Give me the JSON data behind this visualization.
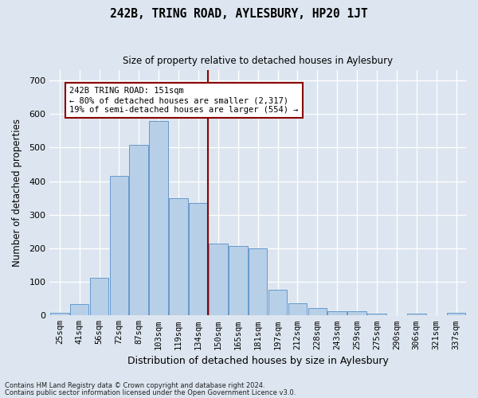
{
  "title": "242B, TRING ROAD, AYLESBURY, HP20 1JT",
  "subtitle": "Size of property relative to detached houses in Aylesbury",
  "xlabel": "Distribution of detached houses by size in Aylesbury",
  "ylabel": "Number of detached properties",
  "categories": [
    "25sqm",
    "41sqm",
    "56sqm",
    "72sqm",
    "87sqm",
    "103sqm",
    "119sqm",
    "134sqm",
    "150sqm",
    "165sqm",
    "181sqm",
    "197sqm",
    "212sqm",
    "228sqm",
    "243sqm",
    "259sqm",
    "275sqm",
    "290sqm",
    "306sqm",
    "321sqm",
    "337sqm"
  ],
  "values": [
    8,
    33,
    113,
    415,
    507,
    578,
    348,
    335,
    215,
    207,
    200,
    77,
    36,
    23,
    13,
    13,
    5,
    1,
    5,
    1,
    8
  ],
  "bar_color": "#b8cfe8",
  "bar_edge_color": "#6699cc",
  "vline_color": "#8b0000",
  "annotation_title": "242B TRING ROAD: 151sqm",
  "annotation_line1": "← 80% of detached houses are smaller (2,317)",
  "annotation_line2": "19% of semi-detached houses are larger (554) →",
  "annotation_box_color": "#ffffff",
  "annotation_box_edge": "#8b0000",
  "bg_color": "#dde6f0",
  "ylim": [
    0,
    730
  ],
  "yticks": [
    0,
    100,
    200,
    300,
    400,
    500,
    600,
    700
  ],
  "footer1": "Contains HM Land Registry data © Crown copyright and database right 2024.",
  "footer2": "Contains public sector information licensed under the Open Government Licence v3.0."
}
